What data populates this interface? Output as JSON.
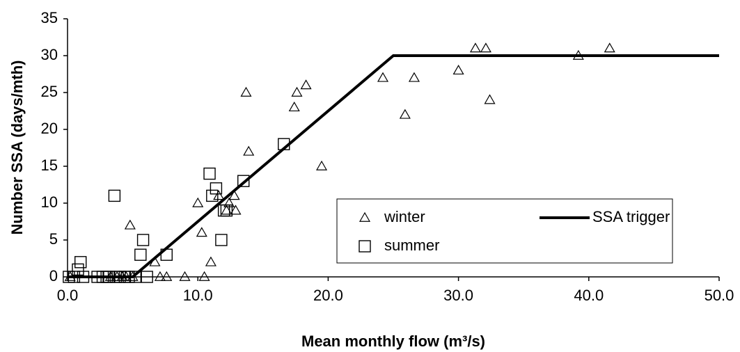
{
  "chart_data": {
    "type": "scatter",
    "x_label": "Mean monthly flow (m³/s)",
    "y_label": "Number SSA (days/mth)",
    "xlim": [
      0,
      50
    ],
    "xticks": [
      {
        "value": 0,
        "label": "0.0"
      },
      {
        "value": 10,
        "label": "10.0"
      },
      {
        "value": 20,
        "label": "20.0"
      },
      {
        "value": 30,
        "label": "30.0"
      },
      {
        "value": 40,
        "label": "40.0"
      },
      {
        "value": 50,
        "label": "50.0"
      }
    ],
    "ylim": [
      0,
      35
    ],
    "yticks": [
      0,
      5,
      10,
      15,
      20,
      25,
      30,
      35
    ],
    "grid": false,
    "legend_position": "lower right",
    "series": [
      {
        "name": "winter",
        "marker": "triangle",
        "color": "#000000",
        "x": [
          0.2,
          3.3,
          3.8,
          4.2,
          4.5,
          5.0,
          4.8,
          6.7,
          7.1,
          7.6,
          9.0,
          10.0,
          10.3,
          10.5,
          11.0,
          11.6,
          12.2,
          12.4,
          12.8,
          12.9,
          13.7,
          13.9,
          17.4,
          17.6,
          18.3,
          19.5,
          24.2,
          25.9,
          26.6,
          30.0,
          31.3,
          32.1,
          32.4,
          39.2,
          41.6
        ],
        "values": [
          0,
          0,
          0,
          0,
          0,
          0,
          7,
          2,
          0,
          0,
          0,
          10,
          6,
          0,
          2,
          11,
          9,
          10,
          11,
          9,
          25,
          17,
          23,
          25,
          26,
          15,
          27,
          22,
          27,
          28,
          31,
          31,
          24,
          30,
          31
        ]
      },
      {
        "name": "summer",
        "marker": "square",
        "color": "#000000",
        "x": [
          0.1,
          0.5,
          0.8,
          1.0,
          1.2,
          2.3,
          2.7,
          3.0,
          3.2,
          3.6,
          3.7,
          4.0,
          4.4,
          4.7,
          5.2,
          5.6,
          5.8,
          6.1,
          7.6,
          10.9,
          11.1,
          11.4,
          11.8,
          12.0,
          12.2,
          13.5,
          16.6
        ],
        "values": [
          0,
          0,
          1,
          2,
          0,
          0,
          0,
          0,
          0,
          11,
          0,
          0,
          0,
          0,
          0,
          3,
          5,
          0,
          3,
          14,
          11,
          12,
          5,
          9,
          9,
          13,
          18
        ]
      },
      {
        "name": "SSA trigger",
        "marker": "line",
        "color": "#000000",
        "x": [
          0,
          5,
          25,
          50
        ],
        "values": [
          0,
          0,
          30,
          30
        ]
      }
    ]
  }
}
